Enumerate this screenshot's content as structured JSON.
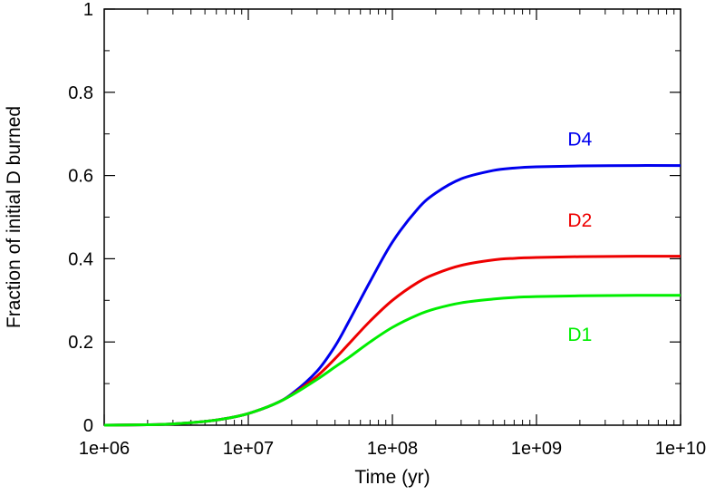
{
  "chart_data": {
    "type": "line",
    "title": "",
    "xlabel": "Time (yr)",
    "ylabel": "Fraction of initial D burned",
    "x_scale": "log",
    "xlim": [
      1000000,
      10000000000
    ],
    "ylim": [
      0,
      1
    ],
    "grid": false,
    "x_ticks": [
      {
        "value": 1000000,
        "label": "1e+06"
      },
      {
        "value": 10000000,
        "label": "1e+07"
      },
      {
        "value": 100000000,
        "label": "1e+08"
      },
      {
        "value": 1000000000,
        "label": "1e+09"
      },
      {
        "value": 10000000000,
        "label": "1e+10"
      }
    ],
    "y_ticks": [
      {
        "value": 0,
        "label": "0"
      },
      {
        "value": 0.2,
        "label": "0.2"
      },
      {
        "value": 0.4,
        "label": "0.4"
      },
      {
        "value": 0.6,
        "label": "0.6"
      },
      {
        "value": 0.8,
        "label": "0.8"
      },
      {
        "value": 1,
        "label": "1"
      }
    ],
    "series": [
      {
        "name": "D4",
        "color": "#0000ee",
        "label_at": [
          2000000000,
          0.69
        ],
        "x": [
          1000000,
          2000000,
          3000000,
          5000000,
          7000000,
          10000000,
          15000000,
          20000000,
          30000000,
          40000000,
          50000000,
          70000000,
          100000000,
          150000000,
          200000000,
          300000000,
          500000000,
          700000000,
          1000000000,
          2000000000,
          5000000000,
          10000000000
        ],
        "y": [
          0,
          0.001,
          0.003,
          0.009,
          0.016,
          0.028,
          0.05,
          0.075,
          0.13,
          0.19,
          0.25,
          0.345,
          0.44,
          0.52,
          0.558,
          0.592,
          0.612,
          0.618,
          0.621,
          0.623,
          0.624,
          0.624
        ]
      },
      {
        "name": "D2",
        "color": "#ee0000",
        "label_at": [
          2000000000,
          0.495
        ],
        "x": [
          1000000,
          2000000,
          3000000,
          5000000,
          7000000,
          10000000,
          15000000,
          20000000,
          30000000,
          40000000,
          50000000,
          70000000,
          100000000,
          150000000,
          200000000,
          300000000,
          500000000,
          700000000,
          1000000000,
          2000000000,
          5000000000,
          10000000000
        ],
        "y": [
          0,
          0.001,
          0.003,
          0.009,
          0.016,
          0.028,
          0.05,
          0.073,
          0.118,
          0.16,
          0.196,
          0.25,
          0.3,
          0.343,
          0.364,
          0.384,
          0.397,
          0.401,
          0.403,
          0.405,
          0.406,
          0.406
        ]
      },
      {
        "name": "D1",
        "color": "#00ee00",
        "label_at": [
          2000000000,
          0.22
        ],
        "x": [
          1000000,
          2000000,
          3000000,
          5000000,
          7000000,
          10000000,
          15000000,
          20000000,
          30000000,
          40000000,
          50000000,
          70000000,
          100000000,
          150000000,
          200000000,
          300000000,
          500000000,
          700000000,
          1000000000,
          2000000000,
          5000000000,
          10000000000
        ],
        "y": [
          0,
          0.001,
          0.003,
          0.009,
          0.016,
          0.028,
          0.05,
          0.072,
          0.11,
          0.14,
          0.163,
          0.2,
          0.235,
          0.265,
          0.28,
          0.294,
          0.303,
          0.307,
          0.309,
          0.311,
          0.312,
          0.312
        ]
      }
    ]
  }
}
